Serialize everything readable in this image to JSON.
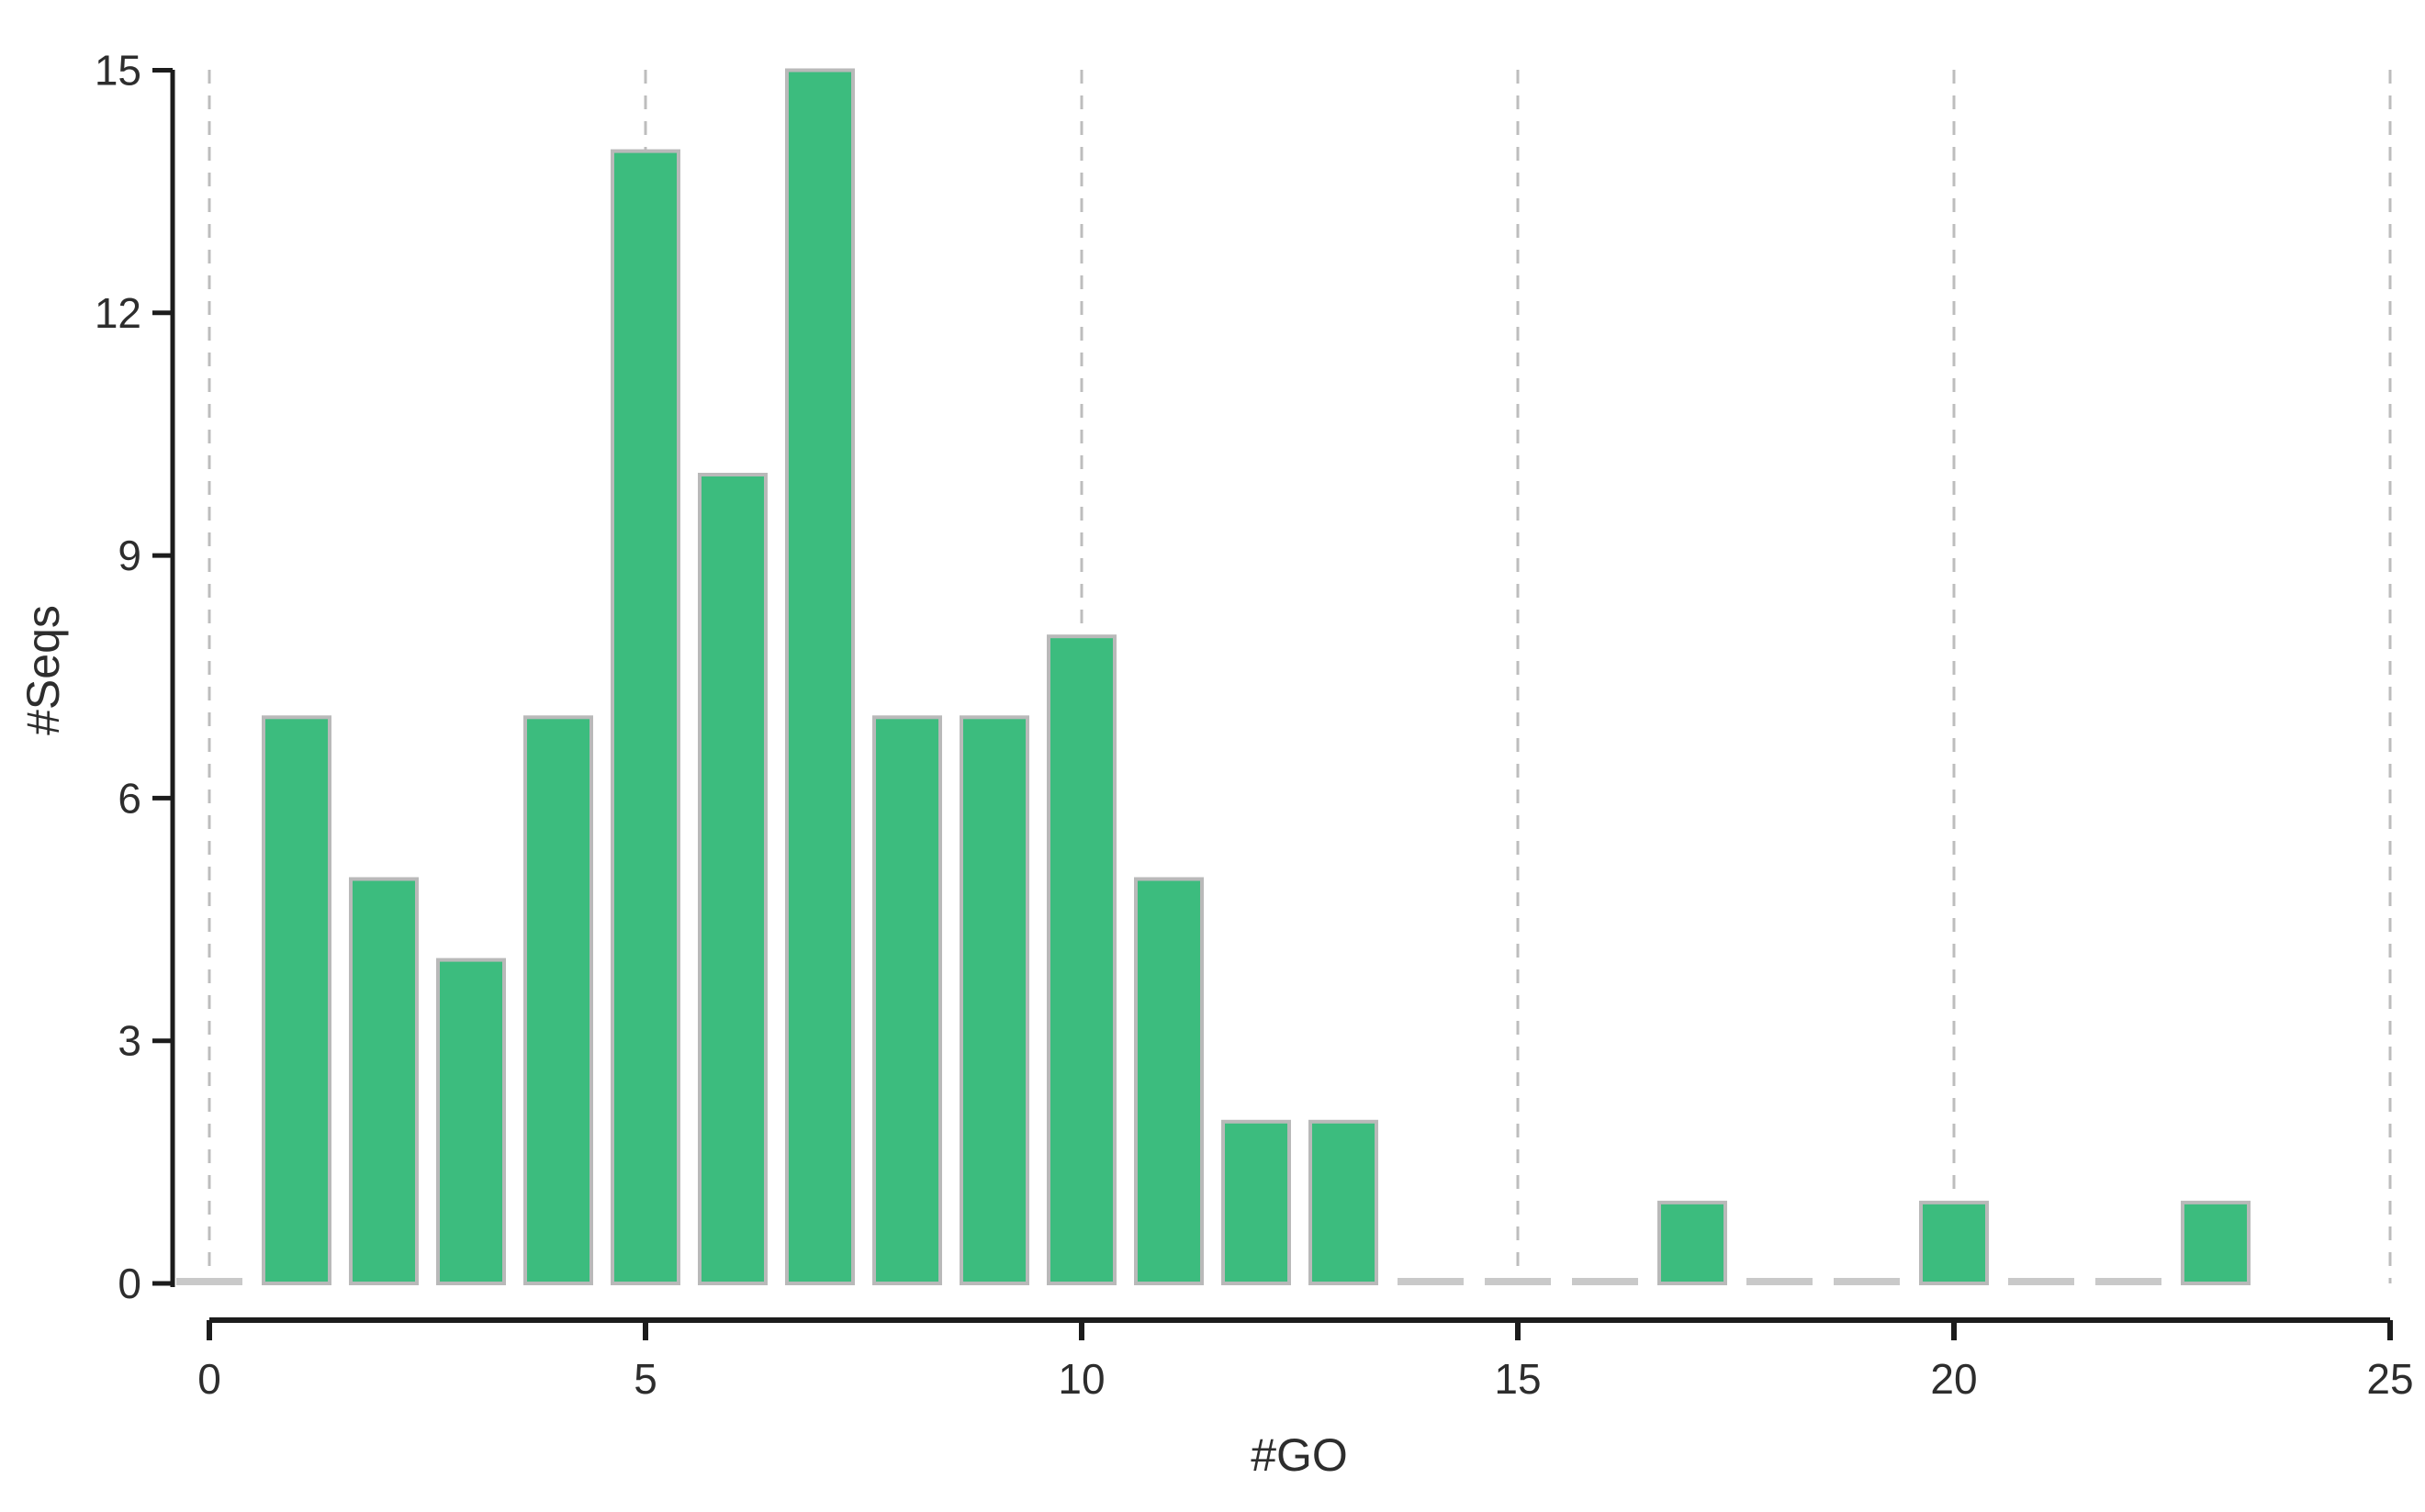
{
  "chart_data": {
    "type": "bar",
    "title": "",
    "xlabel": "#GO",
    "ylabel": "#Seqs",
    "x": [
      0,
      1,
      2,
      3,
      4,
      5,
      6,
      7,
      8,
      9,
      10,
      11,
      12,
      13,
      14,
      15,
      16,
      17,
      18,
      19,
      20,
      21,
      22,
      23
    ],
    "values": [
      0,
      7,
      5,
      4,
      7,
      14,
      10,
      15,
      7,
      7,
      8,
      5,
      2,
      2,
      0,
      0,
      0,
      1,
      0,
      0,
      1,
      0,
      0,
      1
    ],
    "x_ticks": [
      0,
      5,
      10,
      15,
      20,
      25
    ],
    "y_ticks": [
      0,
      3,
      6,
      9,
      12,
      15
    ],
    "xlim": [
      0,
      25
    ],
    "ylim": [
      0,
      15
    ],
    "grid": "vertical-dashed",
    "legend": "none",
    "colors": {
      "bar_fill": "#3CBC7E",
      "bar_stroke": "#B9B9B9",
      "zero_bar": "#C9C9C9",
      "gridline": "#BDBDBD",
      "axis": "#1C1C1C",
      "tick_text": "#2D2D2D"
    }
  }
}
